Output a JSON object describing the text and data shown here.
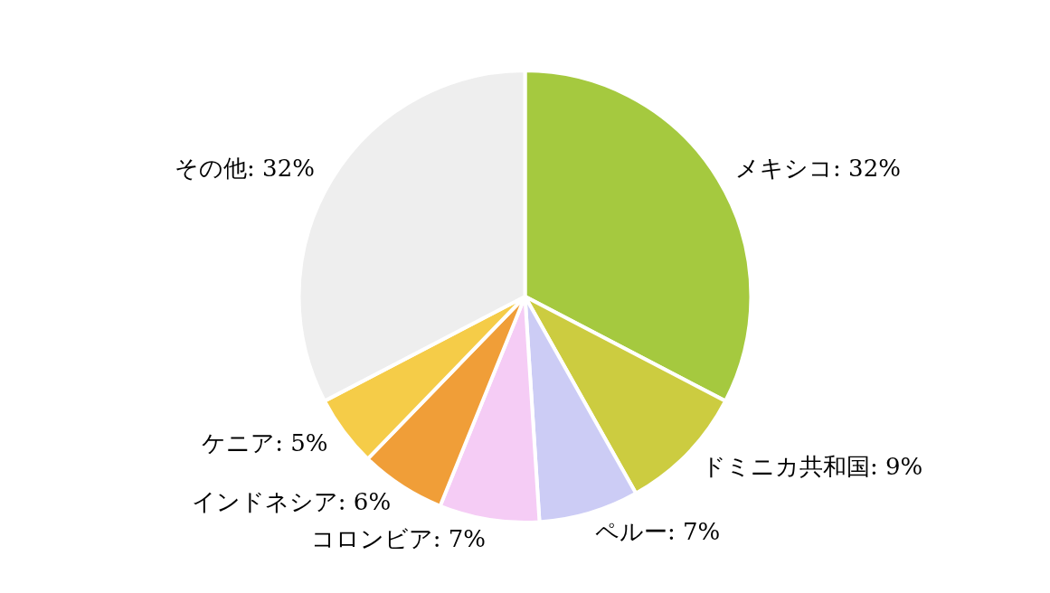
{
  "chart_data": {
    "type": "pie",
    "categories": [
      "メキシコ",
      "ドミニカ共和国",
      "ペルー",
      "コロンビア",
      "インドネシア",
      "ケニア",
      "その他"
    ],
    "values": [
      32,
      9,
      7,
      7,
      6,
      5,
      32
    ],
    "value_labels": [
      "32%",
      "9%",
      "7%",
      "7%",
      "6%",
      "5%",
      "32%"
    ],
    "colors": [
      "#a5c93f",
      "#cccc40",
      "#ccccf5",
      "#f5ccf5",
      "#f09e38",
      "#f5cc48",
      "#eeeeee"
    ],
    "legend": false
  }
}
